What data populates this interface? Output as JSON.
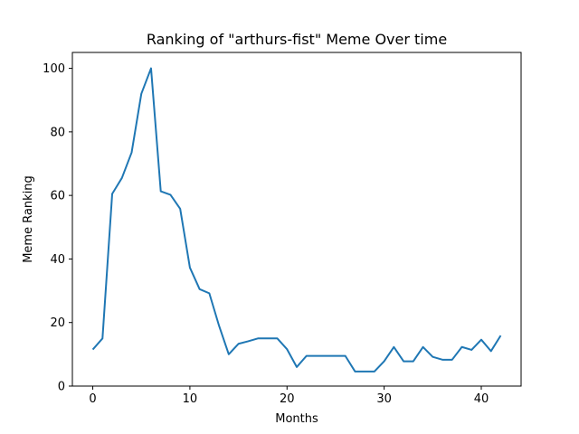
{
  "chart_data": {
    "type": "line",
    "title": "Ranking of \"arthurs-fist\" Meme Over time",
    "xlabel": "Months",
    "ylabel": "Meme Ranking",
    "xlim": [
      -2.1,
      44.1
    ],
    "ylim": [
      0,
      105
    ],
    "xticks": [
      0,
      10,
      20,
      30,
      40
    ],
    "yticks": [
      0,
      20,
      40,
      60,
      80,
      100
    ],
    "grid": false,
    "series": [
      {
        "color": "#1f77b4",
        "x": [
          0,
          1,
          2,
          3,
          4,
          5,
          6,
          7,
          8,
          9,
          10,
          11,
          12,
          13,
          14,
          15,
          16,
          17,
          18,
          19,
          20,
          21,
          22,
          23,
          24,
          25,
          26,
          27,
          28,
          29,
          30,
          31,
          32,
          33,
          34,
          35,
          36,
          37,
          38,
          39,
          40,
          41,
          42
        ],
        "values": [
          11.5,
          15,
          60.5,
          65.5,
          73.5,
          92,
          100,
          61.3,
          60.2,
          55.8,
          37.3,
          30.5,
          29.2,
          19,
          10,
          13.3,
          14.1,
          15,
          15,
          15,
          11.6,
          6,
          9.5,
          9.5,
          9.5,
          9.5,
          9.5,
          4.6,
          4.6,
          4.6,
          7.8,
          12.3,
          7.8,
          7.8,
          12.3,
          9.2,
          8.3,
          8.3,
          12.3,
          11.4,
          14.6,
          11,
          15.9
        ]
      }
    ]
  }
}
